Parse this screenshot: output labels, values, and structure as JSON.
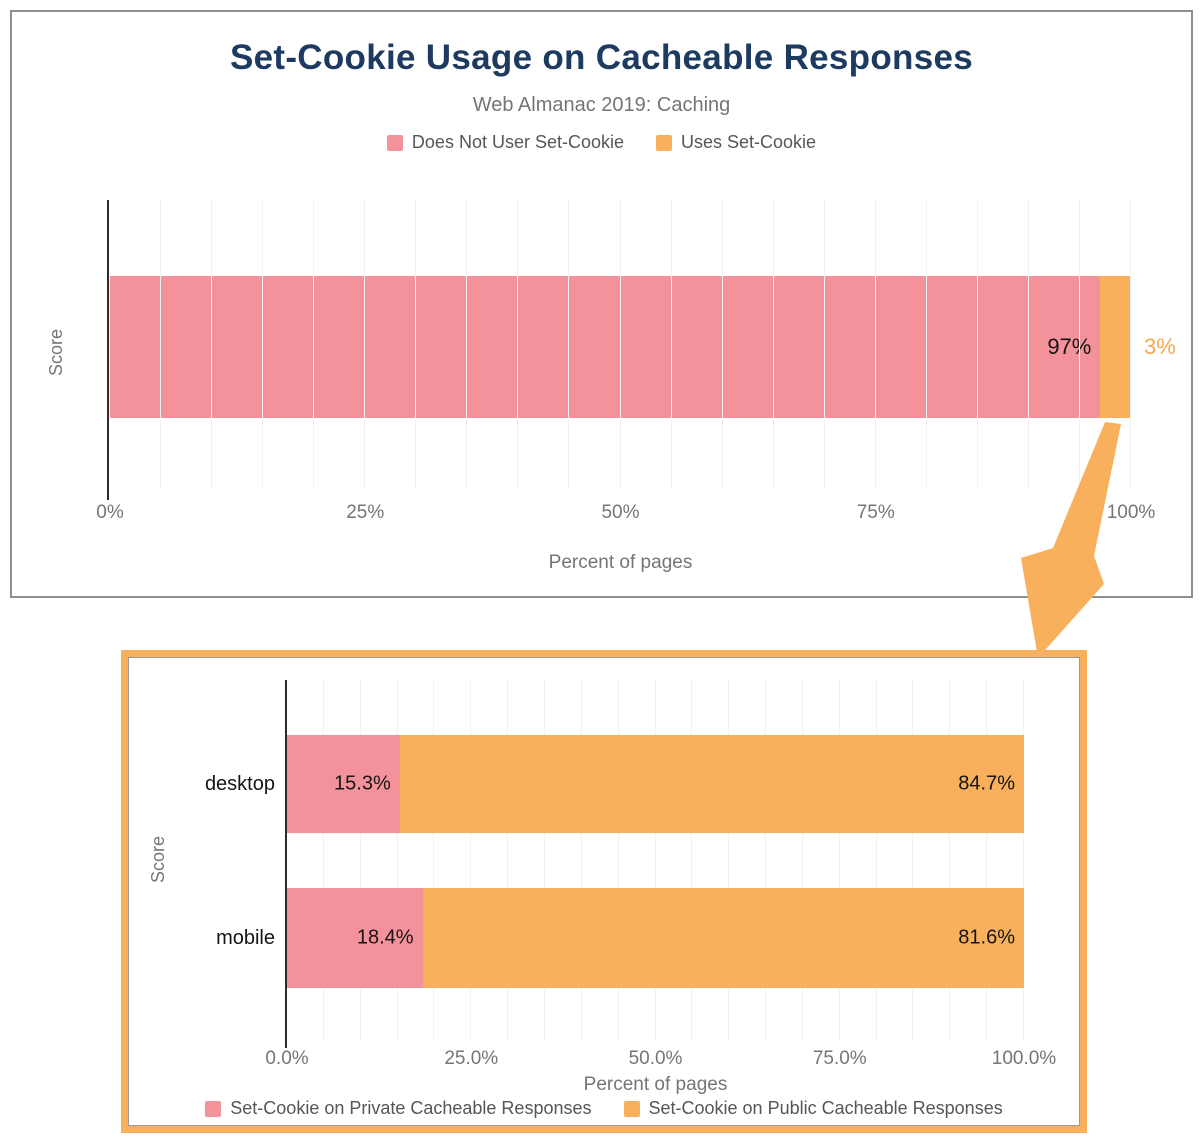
{
  "colors": {
    "title": "#1d3a60",
    "subtitle": "#757575",
    "tick": "#757575",
    "legend_text": "#565656",
    "value": "#141414",
    "pink": "#f4929b",
    "orange": "#f9b05c",
    "orange_value": "#f5a84e",
    "axis": "#2b2b2b",
    "grid": "#f1f1f1",
    "top_border": "#8f8f8f",
    "inner_border": "#9a9a9a"
  },
  "decorations": {
    "highlight_arrow_color": "#f9b05c",
    "highlight_box_color": "#f9b05c"
  },
  "chart_data": [
    {
      "type": "bar",
      "stacked": true,
      "orientation": "horizontal",
      "title": "Set-Cookie Usage on Cacheable Responses",
      "subtitle": "Web Almanac 2019: Caching",
      "categories": [
        "Score"
      ],
      "series": [
        {
          "name": "Does Not User Set-Cookie",
          "color": "#f4929b",
          "values": [
            97
          ],
          "labels": [
            "97%"
          ],
          "label_placement": "inside",
          "label_color": "#141414"
        },
        {
          "name": "Uses Set-Cookie",
          "color": "#f9b05c",
          "values": [
            3
          ],
          "labels": [
            "3%"
          ],
          "label_placement": "outside",
          "label_color": "#f5a84e"
        }
      ],
      "xlabel": "Percent of pages",
      "ylabel": "Score",
      "xticks": [
        "0%",
        "25%",
        "50%",
        "75%",
        "100%"
      ],
      "xlim": [
        0,
        100
      ],
      "legend_position": "top",
      "grid": true
    },
    {
      "type": "bar",
      "stacked": true,
      "orientation": "horizontal",
      "categories": [
        "desktop",
        "mobile"
      ],
      "series": [
        {
          "name": "Set-Cookie on Private Cacheable Responses",
          "color": "#f4929b",
          "values": [
            15.3,
            18.4
          ],
          "labels": [
            "15.3%",
            "18.4%"
          ],
          "label_placement": "inside",
          "label_color": "#141414"
        },
        {
          "name": "Set-Cookie on Public Cacheable Responses",
          "color": "#f9b05c",
          "values": [
            84.7,
            81.6
          ],
          "labels": [
            "84.7%",
            "81.6%"
          ],
          "label_placement": "inside",
          "label_color": "#141414"
        }
      ],
      "xlabel": "Percent of pages",
      "ylabel": "Score",
      "xticks": [
        "0.0%",
        "25.0%",
        "50.0%",
        "75.0%",
        "100.0%"
      ],
      "xlim": [
        0,
        100
      ],
      "legend_position": "bottom",
      "grid": true
    }
  ]
}
